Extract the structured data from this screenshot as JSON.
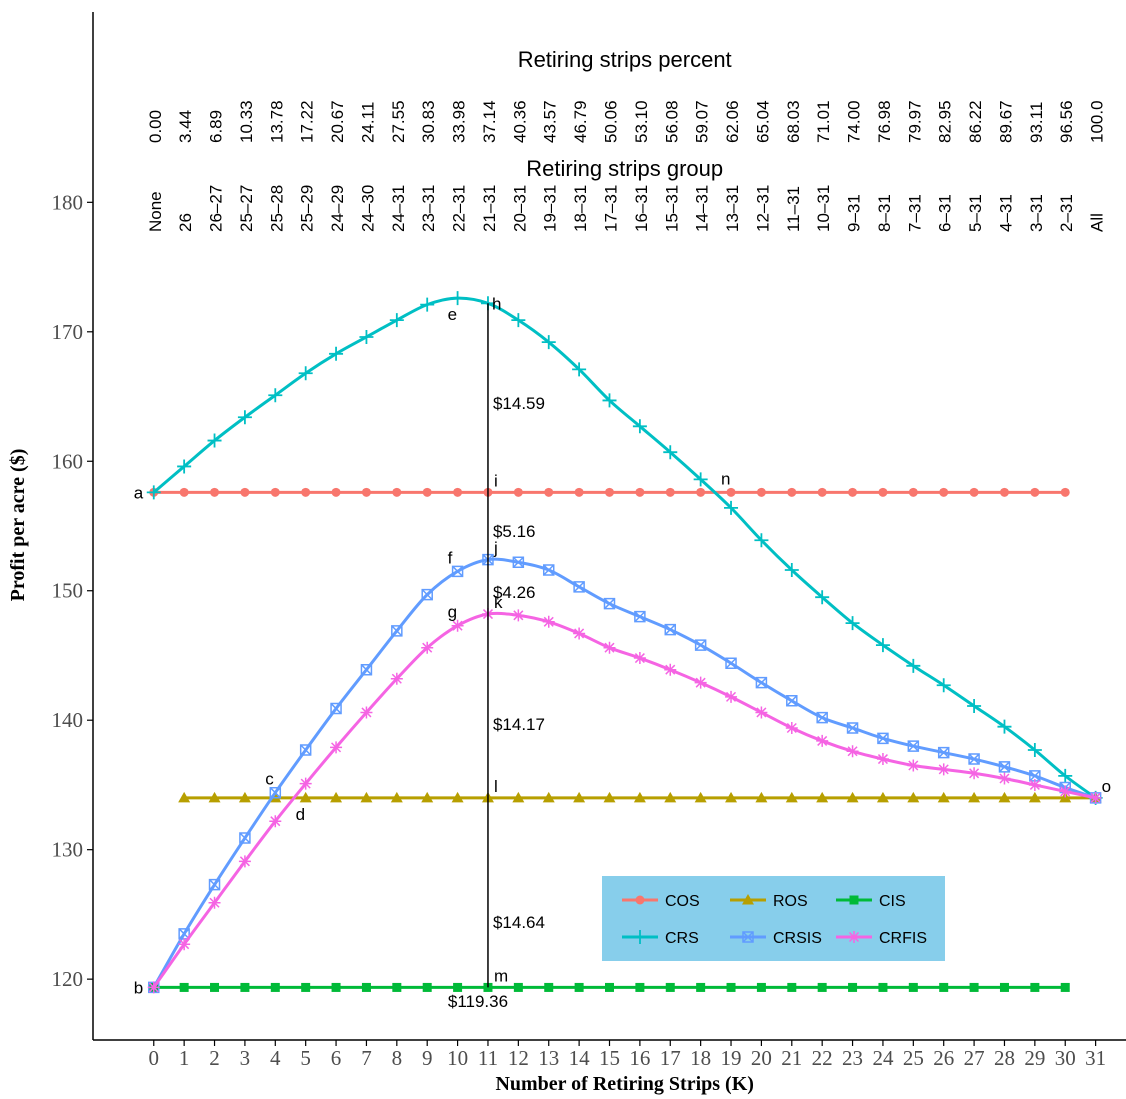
{
  "chart_data": {
    "type": "line",
    "xlabel": "Number of Retiring Strips (K)",
    "ylabel": "Profit per acre ($)",
    "xlim": [
      -2,
      32
    ],
    "ylim": [
      115.3,
      194.7
    ],
    "x_ticks": [
      0,
      1,
      2,
      3,
      4,
      5,
      6,
      7,
      8,
      9,
      10,
      11,
      12,
      13,
      14,
      15,
      16,
      17,
      18,
      19,
      20,
      21,
      22,
      23,
      24,
      25,
      26,
      27,
      28,
      29,
      30,
      31
    ],
    "y_ticks": [
      120,
      130,
      140,
      150,
      160,
      170,
      180
    ],
    "grid": false,
    "top_axis_percent": {
      "title": "Retiring strips percent",
      "labels": [
        "0.00",
        "3.44",
        "6.89",
        "10.33",
        "13.78",
        "17.22",
        "20.67",
        "24.11",
        "27.55",
        "30.83",
        "33.98",
        "37.14",
        "40.36",
        "43.57",
        "46.79",
        "50.06",
        "53.10",
        "56.08",
        "59.07",
        "62.06",
        "65.04",
        "68.03",
        "71.01",
        "74.00",
        "76.98",
        "79.97",
        "82.95",
        "86.22",
        "89.67",
        "93.11",
        "96.56",
        "100.0"
      ]
    },
    "top_axis_group": {
      "title": "Retiring strips group",
      "labels": [
        "None",
        "26",
        "26–27",
        "25–27",
        "25–28",
        "25–29",
        "24–29",
        "24–30",
        "24–31",
        "23–31",
        "22–31",
        "21–31",
        "20–31",
        "19–31",
        "18–31",
        "17–31",
        "16–31",
        "15–31",
        "14–31",
        "13–31",
        "12–31",
        "11–31",
        "10–31",
        "9–31",
        "8–31",
        "7–31",
        "6–31",
        "5–31",
        "4–31",
        "3–31",
        "2–31",
        "All"
      ]
    },
    "series": [
      {
        "name": "COS",
        "color": "#f8766d",
        "marker": "circle",
        "x": [
          0,
          1,
          2,
          3,
          4,
          5,
          6,
          7,
          8,
          9,
          10,
          11,
          12,
          13,
          14,
          15,
          16,
          17,
          18,
          19,
          20,
          21,
          22,
          23,
          24,
          25,
          26,
          27,
          28,
          29,
          30
        ],
        "y": [
          157.6,
          157.6,
          157.6,
          157.6,
          157.6,
          157.6,
          157.6,
          157.6,
          157.6,
          157.6,
          157.6,
          157.6,
          157.6,
          157.6,
          157.6,
          157.6,
          157.6,
          157.6,
          157.6,
          157.6,
          157.6,
          157.6,
          157.6,
          157.6,
          157.6,
          157.6,
          157.6,
          157.6,
          157.6,
          157.6,
          157.6
        ]
      },
      {
        "name": "ROS",
        "color": "#b79f00",
        "marker": "triangle",
        "x": [
          1,
          2,
          3,
          4,
          5,
          6,
          7,
          8,
          9,
          10,
          11,
          12,
          13,
          14,
          15,
          16,
          17,
          18,
          19,
          20,
          21,
          22,
          23,
          24,
          25,
          26,
          27,
          28,
          29,
          30,
          31
        ],
        "y": [
          134,
          134,
          134,
          134,
          134,
          134,
          134,
          134,
          134,
          134,
          134,
          134,
          134,
          134,
          134,
          134,
          134,
          134,
          134,
          134,
          134,
          134,
          134,
          134,
          134,
          134,
          134,
          134,
          134,
          134,
          134
        ]
      },
      {
        "name": "CIS",
        "color": "#00ba38",
        "marker": "square",
        "x": [
          0,
          1,
          2,
          3,
          4,
          5,
          6,
          7,
          8,
          9,
          10,
          11,
          12,
          13,
          14,
          15,
          16,
          17,
          18,
          19,
          20,
          21,
          22,
          23,
          24,
          25,
          26,
          27,
          28,
          29,
          30
        ],
        "y": [
          119.36,
          119.36,
          119.36,
          119.36,
          119.36,
          119.36,
          119.36,
          119.36,
          119.36,
          119.36,
          119.36,
          119.36,
          119.36,
          119.36,
          119.36,
          119.36,
          119.36,
          119.36,
          119.36,
          119.36,
          119.36,
          119.36,
          119.36,
          119.36,
          119.36,
          119.36,
          119.36,
          119.36,
          119.36,
          119.36,
          119.36
        ]
      },
      {
        "name": "CRS",
        "color": "#00bfc4",
        "marker": "plus",
        "x": [
          0,
          1,
          2,
          3,
          4,
          5,
          6,
          7,
          8,
          9,
          10,
          11,
          12,
          13,
          14,
          15,
          16,
          17,
          18,
          19,
          20,
          21,
          22,
          23,
          24,
          25,
          26,
          27,
          28,
          29,
          30,
          31
        ],
        "y": [
          157.6,
          159.6,
          161.6,
          163.4,
          165.1,
          166.8,
          168.3,
          169.6,
          170.9,
          172.1,
          172.6,
          172.2,
          170.9,
          169.2,
          167.1,
          164.7,
          162.7,
          160.7,
          158.6,
          156.4,
          153.9,
          151.6,
          149.5,
          147.5,
          145.8,
          144.2,
          142.7,
          141.1,
          139.5,
          137.7,
          135.7,
          134.0
        ]
      },
      {
        "name": "CRSIS",
        "color": "#619cff",
        "marker": "boxtimes",
        "x": [
          0,
          1,
          2,
          3,
          4,
          5,
          6,
          7,
          8,
          9,
          10,
          11,
          12,
          13,
          14,
          15,
          16,
          17,
          18,
          19,
          20,
          21,
          22,
          23,
          24,
          25,
          26,
          27,
          28,
          29,
          30,
          31
        ],
        "y": [
          119.36,
          123.5,
          127.3,
          130.9,
          134.4,
          137.7,
          140.9,
          143.9,
          146.9,
          149.7,
          151.5,
          152.4,
          152.2,
          151.6,
          150.3,
          149.0,
          148.0,
          147.0,
          145.8,
          144.4,
          142.9,
          141.5,
          140.2,
          139.4,
          138.6,
          138.0,
          137.5,
          137.0,
          136.4,
          135.7,
          134.8,
          134.0
        ]
      },
      {
        "name": "CRFIS",
        "color": "#f564e3",
        "marker": "asterisk",
        "x": [
          0,
          1,
          2,
          3,
          4,
          5,
          6,
          7,
          8,
          9,
          10,
          11,
          12,
          13,
          14,
          15,
          16,
          17,
          18,
          19,
          20,
          21,
          22,
          23,
          24,
          25,
          26,
          27,
          28,
          29,
          30,
          31
        ],
        "y": [
          119.36,
          122.7,
          125.9,
          129.1,
          132.2,
          135.1,
          137.9,
          140.6,
          143.2,
          145.6,
          147.3,
          148.2,
          148.1,
          147.6,
          146.7,
          145.6,
          144.8,
          143.9,
          142.9,
          141.8,
          140.6,
          139.4,
          138.4,
          137.6,
          137.0,
          136.5,
          136.2,
          135.9,
          135.5,
          135.0,
          134.5,
          134.0
        ]
      }
    ],
    "annotations": {
      "vertical_line": {
        "x": 11,
        "y_from": 119.36,
        "y_to": 172.2
      },
      "point_labels": [
        {
          "text": "a",
          "x": 0,
          "y": 157.6,
          "anchor": "left"
        },
        {
          "text": "b",
          "x": 0,
          "y": 119.36,
          "anchor": "left"
        },
        {
          "text": "c",
          "x": 4,
          "y": 134.4,
          "anchor": "above"
        },
        {
          "text": "d",
          "x": 5,
          "y": 134.0,
          "anchor": "below"
        },
        {
          "text": "e",
          "x": 10,
          "y": 172.6,
          "anchor": "below"
        },
        {
          "text": "f",
          "x": 10,
          "y": 151.5,
          "anchor": "above"
        },
        {
          "text": "g",
          "x": 10,
          "y": 147.3,
          "anchor": "above"
        },
        {
          "text": "h",
          "x": 11,
          "y": 172.2,
          "anchor": "right"
        },
        {
          "text": "i",
          "x": 11,
          "y": 157.6,
          "anchor": "above-right"
        },
        {
          "text": "j",
          "x": 11,
          "y": 152.4,
          "anchor": "above-right"
        },
        {
          "text": "k",
          "x": 11,
          "y": 148.2,
          "anchor": "above-right"
        },
        {
          "text": "l",
          "x": 11,
          "y": 134.0,
          "anchor": "above-right"
        },
        {
          "text": "m",
          "x": 11,
          "y": 119.36,
          "anchor": "above-right"
        },
        {
          "text": "n",
          "x": 19,
          "y": 157.6,
          "anchor": "above"
        },
        {
          "text": "o",
          "x": 31,
          "y": 134.0,
          "anchor": "above-right"
        }
      ],
      "gap_labels": [
        {
          "text": "$14.59",
          "x": 11,
          "y": 164.9
        },
        {
          "text": "$5.16",
          "x": 11,
          "y": 155.0
        },
        {
          "text": "$4.26",
          "x": 11,
          "y": 150.3
        },
        {
          "text": "$14.17",
          "x": 11,
          "y": 140.1
        },
        {
          "text": "$14.64",
          "x": 11,
          "y": 124.8
        },
        {
          "text": "$119.36",
          "x": 11,
          "y": 118.7
        }
      ]
    },
    "legend": {
      "placement": "bottom-right inside",
      "background": "#87ceeb",
      "entries": [
        "COS",
        "ROS",
        "CIS",
        "CRS",
        "CRSIS",
        "CRFIS"
      ]
    }
  }
}
